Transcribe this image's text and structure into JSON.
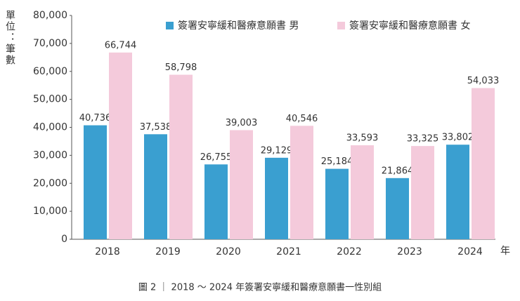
{
  "chart_data": {
    "type": "bar",
    "ylabel": "單位：筆數",
    "xlabel": "年",
    "caption": "圖 2 ｜ 2018 ～ 2024 年簽署安寧緩和醫療意願書一性別組",
    "categories": [
      "2018",
      "2019",
      "2020",
      "2021",
      "2022",
      "2023",
      "2024"
    ],
    "series": [
      {
        "name": "簽署安寧緩和醫療意願書 男",
        "color": "#3a9fd0",
        "values": [
          40736,
          37538,
          26755,
          29129,
          25184,
          21864,
          33802
        ],
        "value_labels": [
          "40,736",
          "37,538",
          "26,755",
          "29,129",
          "25,184",
          "21,864",
          "33,802"
        ]
      },
      {
        "name": "簽署安寧緩和醫療意願書 女",
        "color": "#f4cadb",
        "values": [
          66744,
          58798,
          39003,
          40546,
          33593,
          33325,
          54033
        ],
        "value_labels": [
          "66,744",
          "58,798",
          "39,003",
          "40,546",
          "33,593",
          "33,325",
          "54,033"
        ]
      }
    ],
    "ylim": [
      0,
      80000
    ],
    "yticks": [
      0,
      {
        "value": 10000,
        "label": "10,000"
      },
      {
        "value": 20000,
        "label": "20,000"
      },
      {
        "value": 30000,
        "label": "30,000"
      },
      {
        "value": 40000,
        "label": "40,000"
      },
      {
        "value": 50000,
        "label": "50,000"
      },
      {
        "value": 60000,
        "label": "60,000"
      },
      {
        "value": 70000,
        "label": "70,000"
      },
      {
        "value": 80000,
        "label": "80,000"
      }
    ],
    "grid": false
  }
}
